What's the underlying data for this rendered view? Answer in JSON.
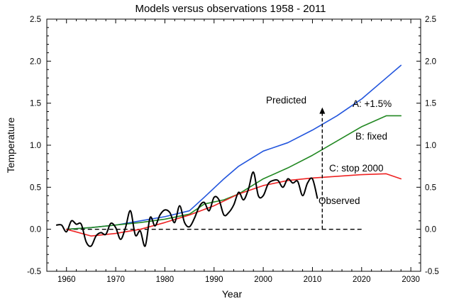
{
  "chart_data": {
    "type": "line",
    "title": "Models versus observations 1958 - 2011",
    "xlabel": "Year",
    "ylabel": "Temperature",
    "xlim": [
      1956,
      2032
    ],
    "ylim": [
      -0.5,
      2.5
    ],
    "x_ticks": [
      1960,
      1970,
      1980,
      1990,
      2000,
      2010,
      2020,
      2030
    ],
    "y_ticks": [
      -0.5,
      0.0,
      0.5,
      1.0,
      1.5,
      2.0,
      2.5
    ],
    "y_tick_labels": [
      "-0.5",
      "0.0",
      "0.5",
      "1.0",
      "1.5",
      "2.0",
      "2.5"
    ],
    "grid": false,
    "colors": {
      "A": "#2255dd",
      "B": "#228822",
      "C": "#ee2222",
      "observed": "#000000"
    },
    "series": [
      {
        "name": "A: +1.5%",
        "color": "#2255dd",
        "x": [
          1960,
          1965,
          1970,
          1975,
          1980,
          1985,
          1988,
          1992,
          1995,
          2000,
          2005,
          2010,
          2015,
          2020,
          2025,
          2028
        ],
        "y": [
          0.0,
          0.02,
          0.05,
          0.1,
          0.15,
          0.22,
          0.38,
          0.6,
          0.75,
          0.93,
          1.03,
          1.18,
          1.35,
          1.55,
          1.8,
          1.95
        ]
      },
      {
        "name": "B: fixed",
        "color": "#228822",
        "x": [
          1960,
          1965,
          1970,
          1975,
          1980,
          1985,
          1988,
          1992,
          1995,
          2000,
          2005,
          2010,
          2015,
          2020,
          2025,
          2028
        ],
        "y": [
          0.0,
          0.02,
          0.05,
          0.08,
          0.12,
          0.18,
          0.3,
          0.35,
          0.42,
          0.6,
          0.73,
          0.88,
          1.05,
          1.22,
          1.35,
          1.35
        ]
      },
      {
        "name": "C: stop 2000",
        "color": "#ee2222",
        "x": [
          1960,
          1965,
          1970,
          1975,
          1980,
          1985,
          1990,
          1995,
          2000,
          2005,
          2010,
          2015,
          2020,
          2025,
          2028
        ],
        "y": [
          0.0,
          -0.08,
          -0.05,
          0.0,
          0.08,
          0.17,
          0.28,
          0.42,
          0.52,
          0.58,
          0.61,
          0.63,
          0.65,
          0.66,
          0.6
        ]
      },
      {
        "name": "Observed",
        "color": "#000000",
        "x": [
          1958,
          1959,
          1960,
          1961,
          1962,
          1963,
          1964,
          1965,
          1966,
          1967,
          1968,
          1969,
          1970,
          1971,
          1972,
          1973,
          1974,
          1975,
          1976,
          1977,
          1978,
          1979,
          1980,
          1981,
          1982,
          1983,
          1984,
          1985,
          1986,
          1987,
          1988,
          1989,
          1990,
          1991,
          1992,
          1993,
          1994,
          1995,
          1996,
          1997,
          1998,
          1999,
          2000,
          2001,
          2002,
          2003,
          2004,
          2005,
          2006,
          2007,
          2008,
          2009,
          2010,
          2011
        ],
        "y": [
          0.05,
          0.05,
          -0.03,
          0.1,
          0.06,
          0.06,
          -0.15,
          -0.2,
          -0.08,
          -0.04,
          -0.06,
          0.07,
          0.02,
          -0.12,
          0.02,
          0.22,
          -0.07,
          -0.02,
          -0.2,
          0.14,
          0.04,
          0.17,
          0.23,
          0.2,
          0.08,
          0.28,
          0.08,
          0.03,
          0.13,
          0.27,
          0.32,
          0.22,
          0.38,
          0.35,
          0.17,
          0.2,
          0.29,
          0.44,
          0.35,
          0.48,
          0.68,
          0.4,
          0.4,
          0.54,
          0.58,
          0.58,
          0.5,
          0.6,
          0.55,
          0.57,
          0.4,
          0.55,
          0.6,
          0.37
        ]
      }
    ],
    "reference_line": {
      "y": 0.0,
      "x_start": 1960,
      "x_end": 2020,
      "style": "dashed"
    },
    "annotations": {
      "predicted": {
        "text": "Predicted",
        "x": 2012,
        "y_from": 0.0,
        "y_to": 1.45
      },
      "A": {
        "text": "A: +1.5%"
      },
      "B": {
        "text": "B: fixed"
      },
      "C": {
        "text": "C: stop 2000"
      },
      "observed": {
        "text": "Observed"
      }
    }
  }
}
